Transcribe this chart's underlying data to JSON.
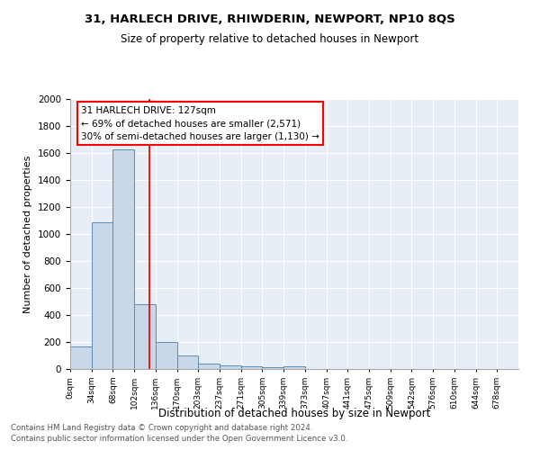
{
  "title1": "31, HARLECH DRIVE, RHIWDERIN, NEWPORT, NP10 8QS",
  "title2": "Size of property relative to detached houses in Newport",
  "xlabel": "Distribution of detached houses by size in Newport",
  "ylabel": "Number of detached properties",
  "bar_color": "#c8d8e8",
  "bar_edge_color": "#5b8db8",
  "background_color": "#e8eef5",
  "bin_labels": [
    "0sqm",
    "34sqm",
    "68sqm",
    "102sqm",
    "136sqm",
    "170sqm",
    "203sqm",
    "237sqm",
    "271sqm",
    "305sqm",
    "339sqm",
    "373sqm",
    "407sqm",
    "441sqm",
    "475sqm",
    "509sqm",
    "542sqm",
    "576sqm",
    "610sqm",
    "644sqm",
    "678sqm"
  ],
  "bar_values": [
    165,
    1085,
    1630,
    480,
    200,
    100,
    40,
    25,
    20,
    15,
    20,
    0,
    0,
    0,
    0,
    0,
    0,
    0,
    0,
    0,
    0
  ],
  "red_line_x": 3.73,
  "annotation_text": "31 HARLECH DRIVE: 127sqm\n← 69% of detached houses are smaller (2,571)\n30% of semi-detached houses are larger (1,130) →",
  "annotation_box_color": "white",
  "annotation_box_edge_color": "red",
  "ylim": [
    0,
    2000
  ],
  "yticks": [
    0,
    200,
    400,
    600,
    800,
    1000,
    1200,
    1400,
    1600,
    1800,
    2000
  ],
  "footnote1": "Contains HM Land Registry data © Crown copyright and database right 2024.",
  "footnote2": "Contains public sector information licensed under the Open Government Licence v3.0."
}
